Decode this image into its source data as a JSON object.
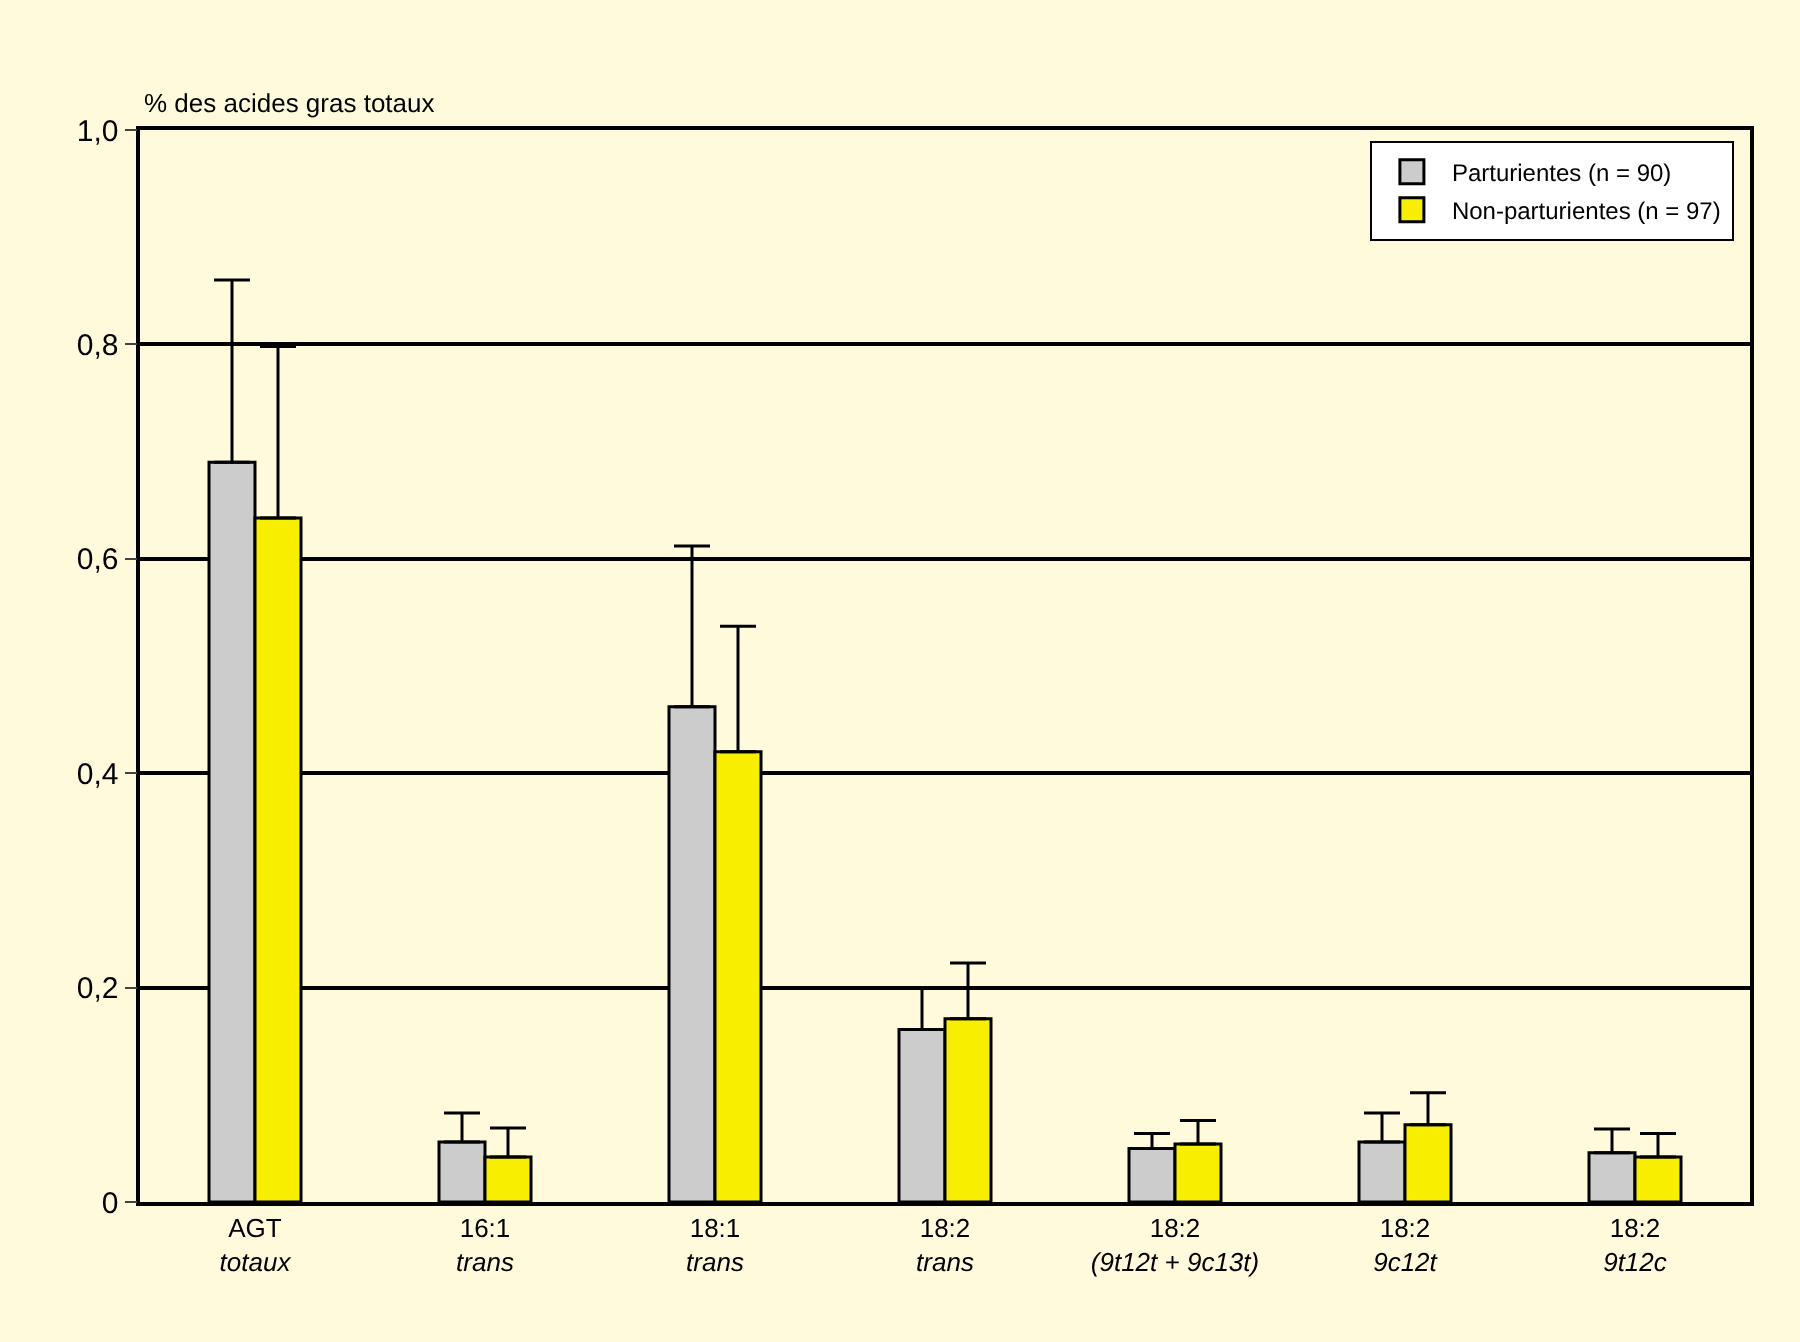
{
  "chart_data": {
    "type": "bar",
    "ylabel": "% des acides gras totaux",
    "categories": [
      "AGT\ntotaux",
      "16:1\ntrans",
      "18:1\ntrans",
      "18:2\ntrans",
      "18:2\n(9t12t + 9c13t)",
      "18:2\n9c12t",
      "18:2\n9t12c"
    ],
    "series": [
      {
        "name": "Parturientes (n = 90)",
        "color": "#cccccc",
        "values": [
          0.69,
          0.056,
          0.462,
          0.161,
          0.05,
          0.056,
          0.046
        ],
        "errors": [
          [
            0.69,
            0.86
          ],
          [
            0.056,
            0.083
          ],
          [
            0.462,
            0.612
          ],
          [
            0.161,
            0.2
          ],
          [
            0.05,
            0.064
          ],
          [
            0.056,
            0.083
          ],
          [
            0.046,
            0.068
          ]
        ]
      },
      {
        "name": "Non-parturientes (n = 97)",
        "color": "#f8ee00",
        "values": [
          0.638,
          0.042,
          0.42,
          0.171,
          0.054,
          0.072,
          0.042
        ],
        "errors": [
          [
            0.638,
            0.798
          ],
          [
            0.042,
            0.069
          ],
          [
            0.42,
            0.537
          ],
          [
            0.171,
            0.223
          ],
          [
            0.054,
            0.076
          ],
          [
            0.072,
            0.102
          ],
          [
            0.042,
            0.064
          ]
        ]
      }
    ],
    "ylim": [
      0,
      1
    ],
    "yticks": [
      0,
      {
        "value": 0.2,
        "label": "0,2"
      },
      {
        "value": 0.4,
        "label": "0,4"
      },
      {
        "value": 0.6,
        "label": "0,6"
      },
      {
        "value": 0.8,
        "label": "0,8"
      },
      {
        "value": 1,
        "label": "1,0"
      }
    ],
    "grid": "y",
    "legend": "top right"
  }
}
